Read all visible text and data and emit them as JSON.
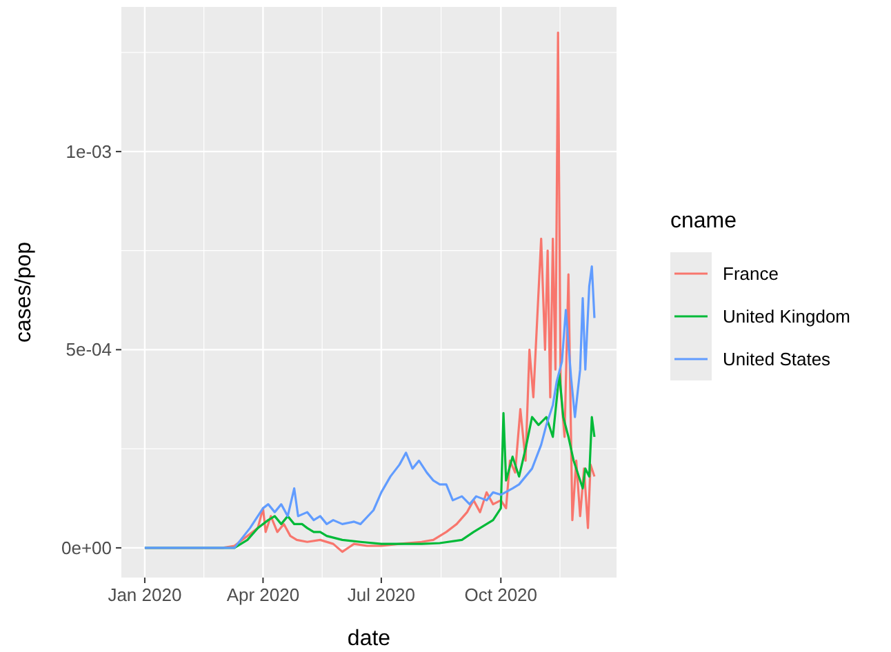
{
  "chart_data": {
    "type": "line",
    "xlabel": "date",
    "ylabel": "cases/pop",
    "legend_title": "cname",
    "legend": "right",
    "grid": true,
    "line_style": "solid",
    "marker": "none",
    "xlim": [
      "2019-12-14",
      "2020-12-29"
    ],
    "xticks": [
      {
        "value": "2020-01-01",
        "label": "Jan 2020"
      },
      {
        "value": "2020-04-01",
        "label": "Apr 2020"
      },
      {
        "value": "2020-07-01",
        "label": "Jul 2020"
      },
      {
        "value": "2020-10-01",
        "label": "Oct 2020"
      }
    ],
    "ylim": [
      -7.5e-05,
      0.001365
    ],
    "yticks": [
      {
        "value": 0,
        "label": "0e+00"
      },
      {
        "value": 0.0005,
        "label": "5e-04"
      },
      {
        "value": 0.001,
        "label": "1e-03"
      }
    ],
    "series": [
      {
        "name": "France",
        "color": "#f8766d",
        "x": [
          "2020-01-01",
          "2020-03-01",
          "2020-03-10",
          "2020-03-20",
          "2020-03-28",
          "2020-04-01",
          "2020-04-03",
          "2020-04-07",
          "2020-04-12",
          "2020-04-17",
          "2020-04-22",
          "2020-04-27",
          "2020-05-05",
          "2020-05-15",
          "2020-05-25",
          "2020-06-01",
          "2020-06-10",
          "2020-06-20",
          "2020-07-01",
          "2020-07-15",
          "2020-08-01",
          "2020-08-10",
          "2020-08-20",
          "2020-08-28",
          "2020-09-05",
          "2020-09-10",
          "2020-09-15",
          "2020-09-20",
          "2020-09-25",
          "2020-10-01",
          "2020-10-05",
          "2020-10-08",
          "2020-10-12",
          "2020-10-16",
          "2020-10-20",
          "2020-10-23",
          "2020-10-26",
          "2020-10-29",
          "2020-11-01",
          "2020-11-04",
          "2020-11-06",
          "2020-11-08",
          "2020-11-10",
          "2020-11-12",
          "2020-11-14",
          "2020-11-16",
          "2020-11-19",
          "2020-11-22",
          "2020-11-25",
          "2020-11-28",
          "2020-12-01",
          "2020-12-04",
          "2020-12-07",
          "2020-12-09",
          "2020-12-12"
        ],
        "values": [
          0,
          0,
          5e-06,
          3e-05,
          5e-05,
          0.0001,
          4e-05,
          8e-05,
          4e-05,
          6e-05,
          3e-05,
          2e-05,
          1.5e-05,
          2e-05,
          1e-05,
          -1e-05,
          1e-05,
          5e-06,
          5e-06,
          1e-05,
          1.5e-05,
          2e-05,
          4e-05,
          6e-05,
          9e-05,
          0.00012,
          9e-05,
          0.00014,
          0.00011,
          0.00012,
          0.0001,
          0.00022,
          0.00019,
          0.00035,
          0.00022,
          0.0005,
          0.00038,
          0.00058,
          0.00078,
          0.0005,
          0.00075,
          0.00038,
          0.00078,
          0.00045,
          0.0013,
          0.0004,
          0.00028,
          0.00069,
          7e-05,
          0.00022,
          8e-05,
          0.0002,
          5e-05,
          0.00021,
          0.00018
        ]
      },
      {
        "name": "United Kingdom",
        "color": "#00ba38",
        "x": [
          "2020-01-01",
          "2020-03-10",
          "2020-03-20",
          "2020-03-28",
          "2020-04-01",
          "2020-04-05",
          "2020-04-10",
          "2020-04-15",
          "2020-04-20",
          "2020-04-25",
          "2020-05-01",
          "2020-05-05",
          "2020-05-10",
          "2020-05-15",
          "2020-05-20",
          "2020-06-01",
          "2020-06-15",
          "2020-07-01",
          "2020-07-15",
          "2020-08-01",
          "2020-08-15",
          "2020-09-01",
          "2020-09-10",
          "2020-09-20",
          "2020-09-25",
          "2020-10-01",
          "2020-10-03",
          "2020-10-05",
          "2020-10-10",
          "2020-10-15",
          "2020-10-20",
          "2020-10-25",
          "2020-10-30",
          "2020-11-05",
          "2020-11-10",
          "2020-11-15",
          "2020-11-18",
          "2020-11-22",
          "2020-11-26",
          "2020-11-30",
          "2020-12-03",
          "2020-12-05",
          "2020-12-08",
          "2020-12-10",
          "2020-12-12"
        ],
        "values": [
          0,
          0,
          2e-05,
          5e-05,
          6e-05,
          7e-05,
          8e-05,
          6e-05,
          8e-05,
          6e-05,
          6e-05,
          5e-05,
          4e-05,
          4e-05,
          3e-05,
          2e-05,
          1.5e-05,
          1e-05,
          1e-05,
          1e-05,
          1.2e-05,
          2e-05,
          4e-05,
          6e-05,
          7e-05,
          0.0001,
          0.00034,
          0.00017,
          0.00023,
          0.00018,
          0.00025,
          0.00033,
          0.00031,
          0.00033,
          0.00028,
          0.00044,
          0.00033,
          0.00028,
          0.00022,
          0.00018,
          0.00015,
          0.0002,
          0.00018,
          0.00033,
          0.00028
        ]
      },
      {
        "name": "United States",
        "color": "#619cff",
        "x": [
          "2020-01-01",
          "2020-03-10",
          "2020-03-22",
          "2020-04-01",
          "2020-04-05",
          "2020-04-10",
          "2020-04-15",
          "2020-04-20",
          "2020-04-25",
          "2020-04-28",
          "2020-05-05",
          "2020-05-10",
          "2020-05-15",
          "2020-05-20",
          "2020-05-25",
          "2020-06-01",
          "2020-06-10",
          "2020-06-15",
          "2020-06-25",
          "2020-07-01",
          "2020-07-08",
          "2020-07-15",
          "2020-07-20",
          "2020-07-25",
          "2020-07-30",
          "2020-08-05",
          "2020-08-10",
          "2020-08-15",
          "2020-08-20",
          "2020-08-25",
          "2020-09-01",
          "2020-09-07",
          "2020-09-12",
          "2020-09-20",
          "2020-09-25",
          "2020-10-01",
          "2020-10-10",
          "2020-10-15",
          "2020-10-20",
          "2020-10-25",
          "2020-11-01",
          "2020-11-05",
          "2020-11-10",
          "2020-11-13",
          "2020-11-17",
          "2020-11-20",
          "2020-11-24",
          "2020-11-27",
          "2020-12-01",
          "2020-12-03",
          "2020-12-05",
          "2020-12-08",
          "2020-12-10",
          "2020-12-12"
        ],
        "values": [
          0,
          0,
          5e-05,
          0.0001,
          0.00011,
          9e-05,
          0.00011,
          8e-05,
          0.00015,
          8e-05,
          9e-05,
          7e-05,
          8e-05,
          6e-05,
          7e-05,
          6e-05,
          6.6e-05,
          6e-05,
          9.5e-05,
          0.00014,
          0.00018,
          0.00021,
          0.00024,
          0.0002,
          0.00022,
          0.00019,
          0.00017,
          0.00016,
          0.00016,
          0.00012,
          0.00013,
          0.00011,
          0.00013,
          0.00012,
          0.00014,
          0.000134,
          0.00015,
          0.00016,
          0.00018,
          0.0002,
          0.00026,
          0.00031,
          0.00036,
          0.00042,
          0.00047,
          0.0006,
          0.00043,
          0.00033,
          0.00045,
          0.00063,
          0.00045,
          0.00066,
          0.00071,
          0.00058
        ]
      }
    ]
  }
}
